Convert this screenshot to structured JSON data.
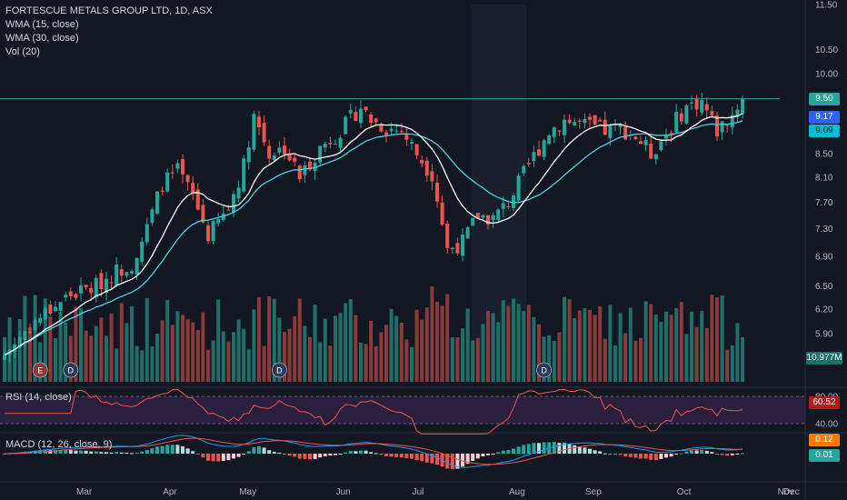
{
  "colors": {
    "background": "#131722",
    "up": "#26a69a",
    "down": "#ef5350",
    "up_volume": "#1f6e68",
    "down_volume": "#8a3a3a",
    "wma15": "#ffffff",
    "wma30": "#4dd0e1",
    "resistance": "#26a69a",
    "rsi": "#ef5350",
    "rsi_band": "#2a1f3d",
    "macd": "#2196f3",
    "signal": "#ef5350",
    "last_price": "#26a69a",
    "wma15_badge": "#2962ff",
    "wma30_badge": "#00bcd4",
    "volume_badge": "#1f6e68",
    "rsi_badge": "#b71c1c",
    "macd_badge": "#f57c00",
    "macd_hist_badge": "#26a69a"
  },
  "legend": {
    "title": "FORTESCUE METALS GROUP LTD, 1D, ASX",
    "wma15": "WMA (15, close)",
    "wma30": "WMA (30, close)",
    "volume": "Vol (20)"
  },
  "indicators": {
    "rsi_label": "RSI (14, close)",
    "macd_label": "MACD (12, 26, close, 9)"
  },
  "badges": {
    "last_price": "9.50",
    "wma15": "9.17",
    "wma30": "9.09",
    "volume": "10.977M",
    "rsi": "60.52",
    "macd": "0.12",
    "macd_hist": "0.01"
  },
  "events": [
    "E",
    "D",
    "D",
    "D"
  ],
  "chart_data": {
    "type": "candlestick",
    "title": "FORTESCUE METALS GROUP LTD, 1D, ASX",
    "price_axis_ticks": [
      "11.50",
      "10.50",
      "10.00",
      "9.50",
      "8.50",
      "8.10",
      "7.70",
      "7.30",
      "6.90",
      "6.50",
      "6.20",
      "5.90"
    ],
    "price_scale": "log",
    "price_range": [
      5.55,
      11.5
    ],
    "x_axis_ticks": [
      "Mar",
      "Apr",
      "May",
      "Jun",
      "Jul",
      "Aug",
      "Sep",
      "Oct",
      "Nov",
      "Dec"
    ],
    "resistance_level": 9.5,
    "anchors": [
      [
        0,
        5.65
      ],
      [
        5,
        6.0
      ],
      [
        12,
        6.35
      ],
      [
        18,
        6.5
      ],
      [
        22,
        6.7
      ],
      [
        25,
        6.8
      ],
      [
        28,
        7.3
      ],
      [
        31,
        8.0
      ],
      [
        34,
        8.2
      ],
      [
        37,
        7.8
      ],
      [
        40,
        7.2
      ],
      [
        44,
        7.6
      ],
      [
        47,
        8.3
      ],
      [
        49,
        9.2
      ],
      [
        52,
        8.5
      ],
      [
        55,
        8.6
      ],
      [
        58,
        8.1
      ],
      [
        62,
        8.6
      ],
      [
        66,
        8.9
      ],
      [
        70,
        9.35
      ],
      [
        72,
        9.1
      ],
      [
        75,
        8.95
      ],
      [
        78,
        8.9
      ],
      [
        81,
        8.5
      ],
      [
        84,
        8.15
      ],
      [
        87,
        7.0
      ],
      [
        90,
        7.1
      ],
      [
        93,
        7.5
      ],
      [
        96,
        7.45
      ],
      [
        99,
        7.7
      ],
      [
        103,
        8.3
      ],
      [
        107,
        8.9
      ],
      [
        110,
        9.1
      ],
      [
        114,
        9.0
      ],
      [
        118,
        8.9
      ],
      [
        121,
        8.95
      ],
      [
        124,
        8.8
      ],
      [
        127,
        8.5
      ],
      [
        130,
        8.85
      ],
      [
        134,
        9.35
      ],
      [
        137,
        9.45
      ],
      [
        140,
        8.9
      ],
      [
        143,
        9.2
      ],
      [
        145,
        9.5
      ]
    ],
    "last_close": 9.5,
    "wma15_last": 9.17,
    "wma30_last": 9.09,
    "volume_last": "10.977M",
    "rsi": {
      "upper": 80,
      "lower": 40,
      "ticks": [
        "80.00",
        "40.00"
      ],
      "last": 60.52
    },
    "macd": {
      "fast": 12,
      "slow": 26,
      "signal": 9,
      "last_macd": 0.12,
      "last_hist": 0.01
    }
  }
}
